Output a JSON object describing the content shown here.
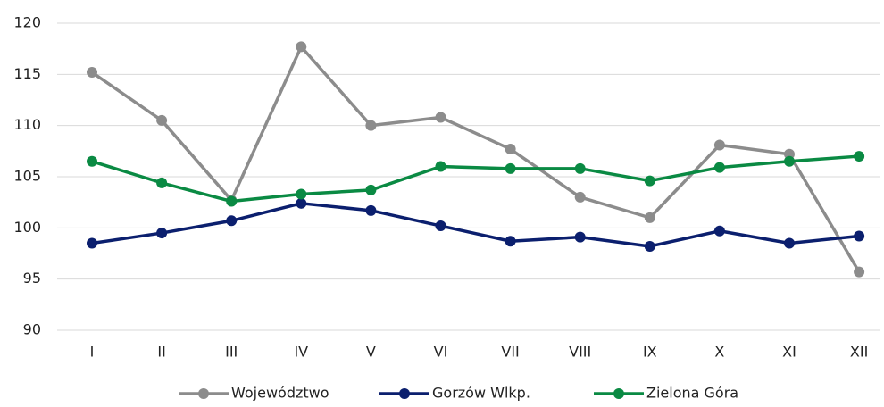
{
  "chart_data": {
    "type": "line",
    "categories": [
      "I",
      "II",
      "III",
      "IV",
      "V",
      "VI",
      "VII",
      "VIII",
      "IX",
      "X",
      "XI",
      "XII"
    ],
    "series": [
      {
        "name": "Województwo",
        "color": "#8c8c8c",
        "values": [
          115.2,
          110.5,
          102.7,
          117.7,
          110.0,
          110.8,
          107.7,
          103.0,
          101.0,
          108.1,
          107.2,
          95.7
        ]
      },
      {
        "name": "Gorzów Wlkp.",
        "color": "#0b1f6e",
        "values": [
          98.5,
          99.5,
          100.7,
          102.4,
          101.7,
          100.2,
          98.7,
          99.1,
          98.2,
          99.7,
          98.5,
          99.2
        ]
      },
      {
        "name": "Zielona Góra",
        "color": "#0a8a43",
        "values": [
          106.5,
          104.4,
          102.6,
          103.3,
          103.7,
          106.0,
          105.8,
          105.8,
          104.6,
          105.9,
          106.5,
          107.0
        ]
      }
    ],
    "ylim": [
      90,
      120
    ],
    "yticks": [
      90,
      95,
      100,
      105,
      110,
      115,
      120
    ],
    "grid": true,
    "legend": "bottom"
  }
}
